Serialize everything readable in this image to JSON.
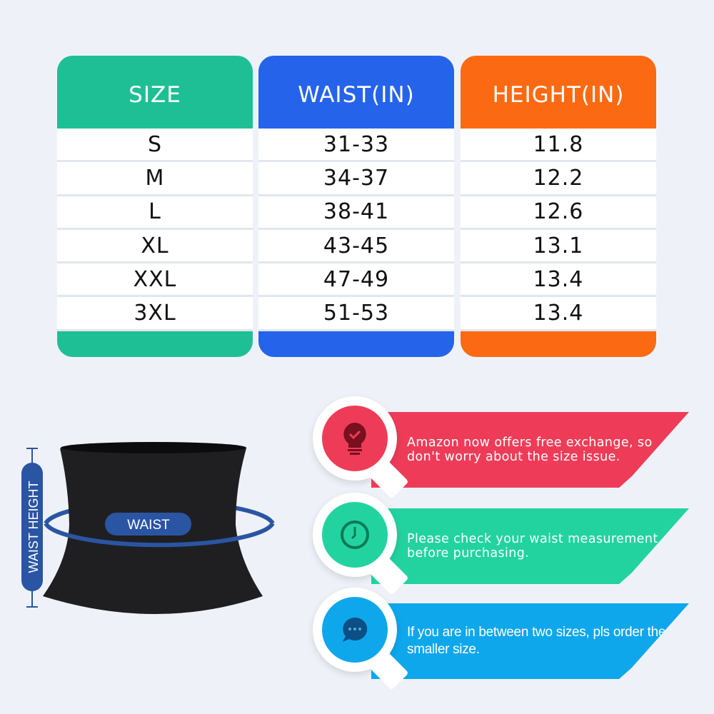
{
  "table": {
    "columns": [
      {
        "header": "SIZE",
        "color": "#1fbf95",
        "values": [
          "S",
          "M",
          "L",
          "XL",
          "XXL",
          "3XL"
        ]
      },
      {
        "header": "WAIST(IN)",
        "color": "#2563eb",
        "values": [
          "31-33",
          "34-37",
          "38-41",
          "43-45",
          "47-49",
          "51-53"
        ]
      },
      {
        "header": "HEIGHT(IN)",
        "color": "#fb6a12",
        "values": [
          "11.8",
          "12.2",
          "12.6",
          "13.1",
          "13.4",
          "13.4"
        ]
      }
    ]
  },
  "diagram": {
    "waist_label": "WAIST",
    "height_label": "WAIST HEIGHT",
    "accent": "#2a55a3"
  },
  "tips": [
    {
      "icon": "lightbulb-check-icon",
      "color": "#ee3c58",
      "text": "Amazon now offers free exchange, so don't worry about the size issue."
    },
    {
      "icon": "clock-icon",
      "color": "#22d3a0",
      "text": "Please check your waist measurement before purchasing."
    },
    {
      "icon": "chat-bubble-icon",
      "color": "#0ea7ec",
      "text": "If you are in between two sizes, pls order the smaller size."
    }
  ]
}
